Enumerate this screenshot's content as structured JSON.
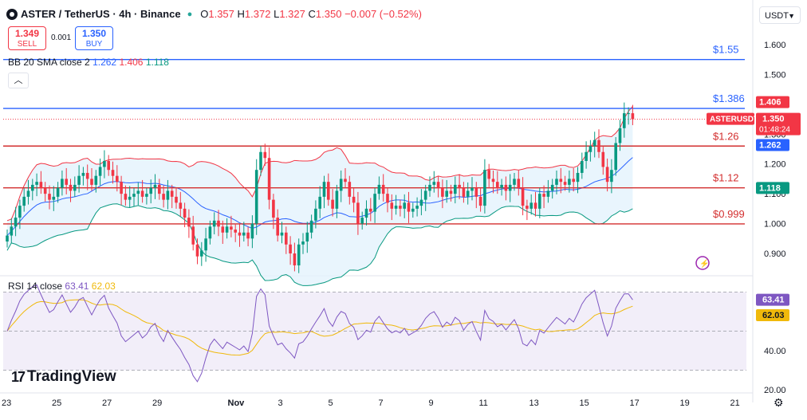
{
  "header": {
    "symbol": "ASTER / TetherUS · 4h · Binance",
    "open_label": "O",
    "open": "1.357",
    "high_label": "H",
    "high": "1.372",
    "low_label": "L",
    "low": "1.327",
    "close_label": "C",
    "close": "1.350",
    "change": "−0.007 (−0.52%)"
  },
  "trade": {
    "sell_price": "1.349",
    "sell_label": "SELL",
    "spread": "0.001",
    "buy_price": "1.350",
    "buy_label": "BUY"
  },
  "bb_legend": {
    "label": "BB 20 SMA close 2",
    "basis": "1.262",
    "upper": "1.406",
    "lower": "1.118"
  },
  "rsi_legend": {
    "label": "RSI 14 close",
    "rsi": "63.41",
    "ma": "62.03"
  },
  "currency": "USDT",
  "brand": "TradingView",
  "colors": {
    "up": "#089981",
    "down": "#f23645",
    "basis": "#2962ff",
    "upper": "#f23645",
    "lower": "#089981",
    "band_fill": "#e3f2fd",
    "rsi": "#7e57c2",
    "rsi_ma": "#f0b90b",
    "rsi_fill": "#ede7f6",
    "hline_blue": "#2962ff",
    "hline_red": "#d32f2f"
  },
  "chart_data": [
    {
      "type": "candlestick",
      "title": "ASTER / TetherUS · 4h · Binance",
      "ylim": [
        0.85,
        1.68
      ],
      "y_ticks": [
        "1.600",
        "1.500",
        "1.400",
        "1.300",
        "1.200",
        "1.100",
        "1.000",
        "0.900"
      ],
      "x_ticks": [
        {
          "label": "23",
          "idx": 0
        },
        {
          "label": "25",
          "idx": 12
        },
        {
          "label": "27",
          "idx": 24
        },
        {
          "label": "29",
          "idx": 36
        },
        {
          "label": "Nov",
          "idx": 54
        },
        {
          "label": "3",
          "idx": 66
        },
        {
          "label": "5",
          "idx": 78
        },
        {
          "label": "7",
          "idx": 90
        },
        {
          "label": "9",
          "idx": 102
        },
        {
          "label": "11",
          "idx": 114
        },
        {
          "label": "13",
          "idx": 126
        },
        {
          "label": "15",
          "idx": 138
        },
        {
          "label": "17",
          "idx": 150
        },
        {
          "label": "19",
          "idx": 162
        },
        {
          "label": "21",
          "idx": 174
        }
      ],
      "candles_close": [
        0.96,
        0.99,
        1.02,
        1.06,
        1.09,
        1.11,
        1.13,
        1.14,
        1.12,
        1.1,
        1.08,
        1.09,
        1.12,
        1.15,
        1.13,
        1.11,
        1.13,
        1.16,
        1.17,
        1.15,
        1.13,
        1.16,
        1.19,
        1.21,
        1.18,
        1.16,
        1.14,
        1.1,
        1.08,
        1.09,
        1.1,
        1.11,
        1.09,
        1.1,
        1.12,
        1.13,
        1.1,
        1.08,
        1.11,
        1.09,
        1.07,
        1.05,
        1.02,
        0.99,
        0.93,
        0.89,
        0.91,
        0.95,
        0.99,
        1.01,
        0.99,
        0.97,
        0.99,
        0.98,
        0.97,
        0.96,
        0.97,
        0.95,
        1.0,
        1.18,
        1.24,
        1.22,
        1.08,
        1.02,
        0.96,
        0.97,
        0.93,
        0.9,
        0.86,
        0.93,
        0.94,
        0.97,
        1.01,
        1.05,
        1.09,
        1.14,
        1.08,
        1.05,
        1.11,
        1.15,
        1.14,
        1.09,
        1.07,
        1.0,
        1.02,
        1.05,
        1.04,
        1.1,
        1.13,
        1.1,
        1.07,
        1.05,
        1.06,
        1.05,
        1.07,
        1.04,
        1.05,
        1.06,
        1.08,
        1.11,
        1.13,
        1.14,
        1.12,
        1.09,
        1.11,
        1.1,
        1.13,
        1.12,
        1.09,
        1.11,
        1.12,
        1.09,
        1.06,
        1.18,
        1.15,
        1.14,
        1.12,
        1.13,
        1.11,
        1.13,
        1.15,
        1.12,
        1.06,
        1.05,
        1.07,
        1.05,
        1.1,
        1.09,
        1.11,
        1.13,
        1.15,
        1.14,
        1.13,
        1.15,
        1.14,
        1.17,
        1.21,
        1.24,
        1.26,
        1.28,
        1.24,
        1.19,
        1.14,
        1.18,
        1.27,
        1.32,
        1.37,
        1.37,
        1.35
      ],
      "basis_last": 1.262,
      "upper_last": 1.406,
      "lower_last": 1.118,
      "current_price": 1.35,
      "horizontal_levels": [
        {
          "price": 1.55,
          "label": "$1.55",
          "color": "blue"
        },
        {
          "price": 1.386,
          "label": "$1.386",
          "color": "blue"
        },
        {
          "price": 1.26,
          "label": "$1.26",
          "color": "red"
        },
        {
          "price": 1.12,
          "label": "$1.12",
          "color": "red"
        },
        {
          "price": 0.999,
          "label": "$0.999",
          "color": "red"
        }
      ],
      "price_labels": [
        {
          "text": "1.406",
          "price": 1.406,
          "color": "red"
        },
        {
          "text": "ASTERUSDT",
          "price": 1.35,
          "color": "red"
        },
        {
          "text": "1.350",
          "price": 1.35,
          "color": "red"
        },
        {
          "text": "01:48:24",
          "price": 1.35,
          "color": "red"
        },
        {
          "text": "1.262",
          "price": 1.262,
          "color": "blue"
        },
        {
          "text": "1.118",
          "price": 1.118,
          "color": "green"
        }
      ]
    },
    {
      "type": "line",
      "title": "RSI 14 close",
      "ylim": [
        20,
        80
      ],
      "y_ticks": [
        "40.00",
        "20.00"
      ],
      "bands": {
        "upper": 70,
        "middle": 50,
        "lower": 30
      },
      "rsi_last": 63.41,
      "ma_last": 62.03,
      "price_labels": [
        {
          "text": "63.41",
          "value": 63.41,
          "color": "purple"
        },
        {
          "text": "62.03",
          "value": 62.03,
          "color": "yellow"
        }
      ]
    }
  ]
}
